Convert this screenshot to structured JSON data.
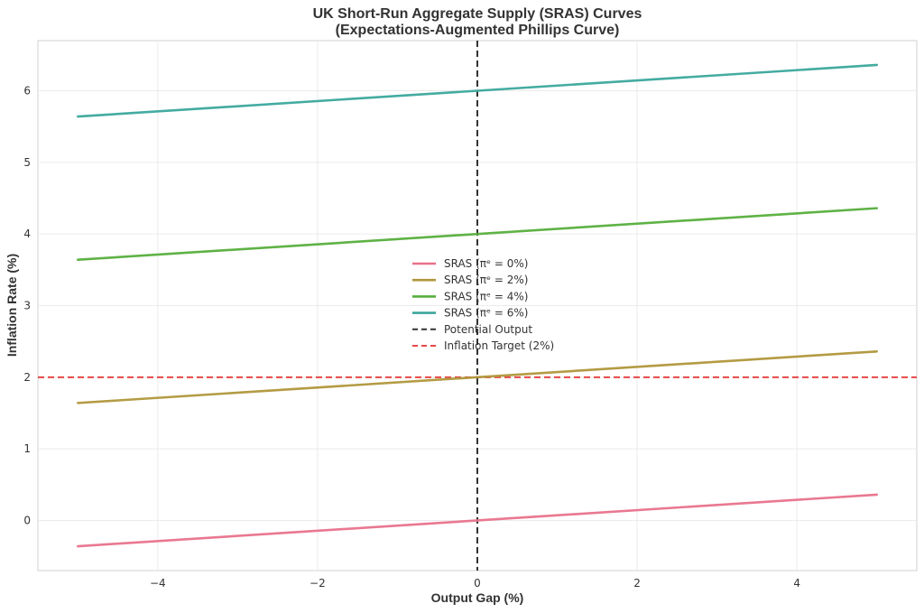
{
  "chart_data": {
    "type": "line",
    "title_line1": "UK Short-Run Aggregate Supply (SRAS) Curves",
    "title_line2": "(Expectations-Augmented Phillips Curve)",
    "xlabel": "Output Gap (%)",
    "ylabel": "Inflation Rate (%)",
    "xlim": [
      -5.5,
      5.5
    ],
    "ylim": [
      -0.7,
      6.7
    ],
    "xticks": [
      -4,
      -2,
      0,
      2,
      4
    ],
    "xtick_labels": [
      "−4",
      "−2",
      "0",
      "2",
      "4"
    ],
    "yticks": [
      0,
      1,
      2,
      3,
      4,
      5,
      6
    ],
    "ytick_labels": [
      "0",
      "1",
      "2",
      "3",
      "4",
      "5",
      "6"
    ],
    "grid": true,
    "legend_position": "center",
    "series": [
      {
        "name": "SRAS (πᵉ = 0%)",
        "color": "#e8718a",
        "style": "solid",
        "x": [
          -5,
          5
        ],
        "y": [
          -0.36,
          0.36
        ]
      },
      {
        "name": "SRAS (πᵉ = 2%)",
        "color": "#b0963a",
        "style": "solid",
        "x": [
          -5,
          5
        ],
        "y": [
          1.64,
          2.36
        ]
      },
      {
        "name": "SRAS (πᵉ = 4%)",
        "color": "#56ae3c",
        "style": "solid",
        "x": [
          -5,
          5
        ],
        "y": [
          3.64,
          4.36
        ]
      },
      {
        "name": "SRAS (πᵉ = 6%)",
        "color": "#3aa69c",
        "style": "solid",
        "x": [
          -5,
          5
        ],
        "y": [
          5.64,
          6.36
        ]
      }
    ],
    "reference_lines": [
      {
        "name": "Potential Output",
        "orientation": "vertical",
        "value": 0,
        "color": "#333333",
        "style": "dashed"
      },
      {
        "name": "Inflation Target (2%)",
        "orientation": "horizontal",
        "value": 2,
        "color": "#e84848",
        "style": "dashed"
      }
    ]
  }
}
